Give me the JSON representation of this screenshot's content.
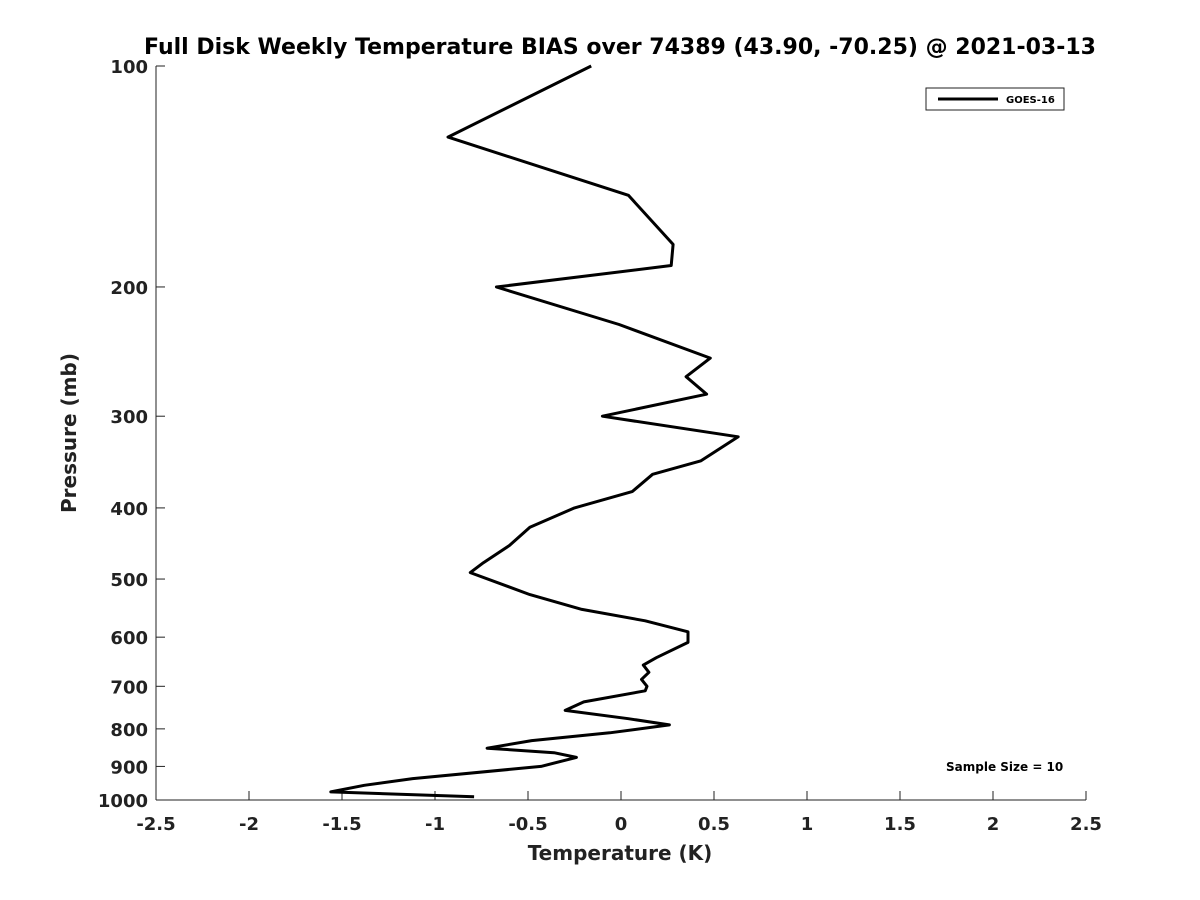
{
  "chart_data": {
    "type": "line",
    "title": "Full Disk Weekly Temperature BIAS over 74389 (43.90, -70.25) @ 2021-03-13",
    "xlabel": "Temperature (K)",
    "ylabel": "Pressure (mb)",
    "xlim": [
      -2.5,
      2.5
    ],
    "ylim": [
      100,
      1000
    ],
    "y_scale": "log",
    "y_inverted": true,
    "grid": false,
    "x_ticks": [
      "-2.5",
      "-2",
      "-1.5",
      "-1",
      "-0.5",
      "0",
      "0.5",
      "1",
      "1.5",
      "2",
      "2.5"
    ],
    "y_ticks": [
      "100",
      "200",
      "300",
      "400",
      "500",
      "600",
      "700",
      "800",
      "900",
      "1000"
    ],
    "legend": {
      "position": "top-right",
      "entries": [
        "GOES-16"
      ]
    },
    "annotation": "Sample Size = 10",
    "series": [
      {
        "name": "GOES-16",
        "color": "#000000",
        "points": [
          [
            -0.16,
            100
          ],
          [
            -0.93,
            125
          ],
          [
            0.04,
            150
          ],
          [
            0.28,
            175
          ],
          [
            0.27,
            187
          ],
          [
            -0.67,
            200
          ],
          [
            -0.01,
            225
          ],
          [
            0.48,
            250
          ],
          [
            0.35,
            265
          ],
          [
            0.46,
            280
          ],
          [
            -0.1,
            300
          ],
          [
            0.63,
            320
          ],
          [
            0.43,
            345
          ],
          [
            0.17,
            360
          ],
          [
            0.06,
            380
          ],
          [
            -0.25,
            400
          ],
          [
            -0.49,
            425
          ],
          [
            -0.6,
            450
          ],
          [
            -0.74,
            475
          ],
          [
            -0.81,
            490
          ],
          [
            -0.49,
            525
          ],
          [
            -0.21,
            550
          ],
          [
            0.13,
            570
          ],
          [
            0.36,
            590
          ],
          [
            0.36,
            610
          ],
          [
            0.19,
            640
          ],
          [
            0.12,
            655
          ],
          [
            0.15,
            670
          ],
          [
            0.11,
            685
          ],
          [
            0.14,
            700
          ],
          [
            0.13,
            710
          ],
          [
            -0.2,
            735
          ],
          [
            -0.3,
            755
          ],
          [
            0.04,
            775
          ],
          [
            0.26,
            790
          ],
          [
            -0.06,
            810
          ],
          [
            -0.48,
            830
          ],
          [
            -0.72,
            850
          ],
          [
            -0.36,
            862
          ],
          [
            -0.24,
            875
          ],
          [
            -0.43,
            900
          ],
          [
            -1.12,
            935
          ],
          [
            -1.38,
            955
          ],
          [
            -1.56,
            975
          ],
          [
            -0.79,
            990
          ]
        ]
      }
    ]
  }
}
